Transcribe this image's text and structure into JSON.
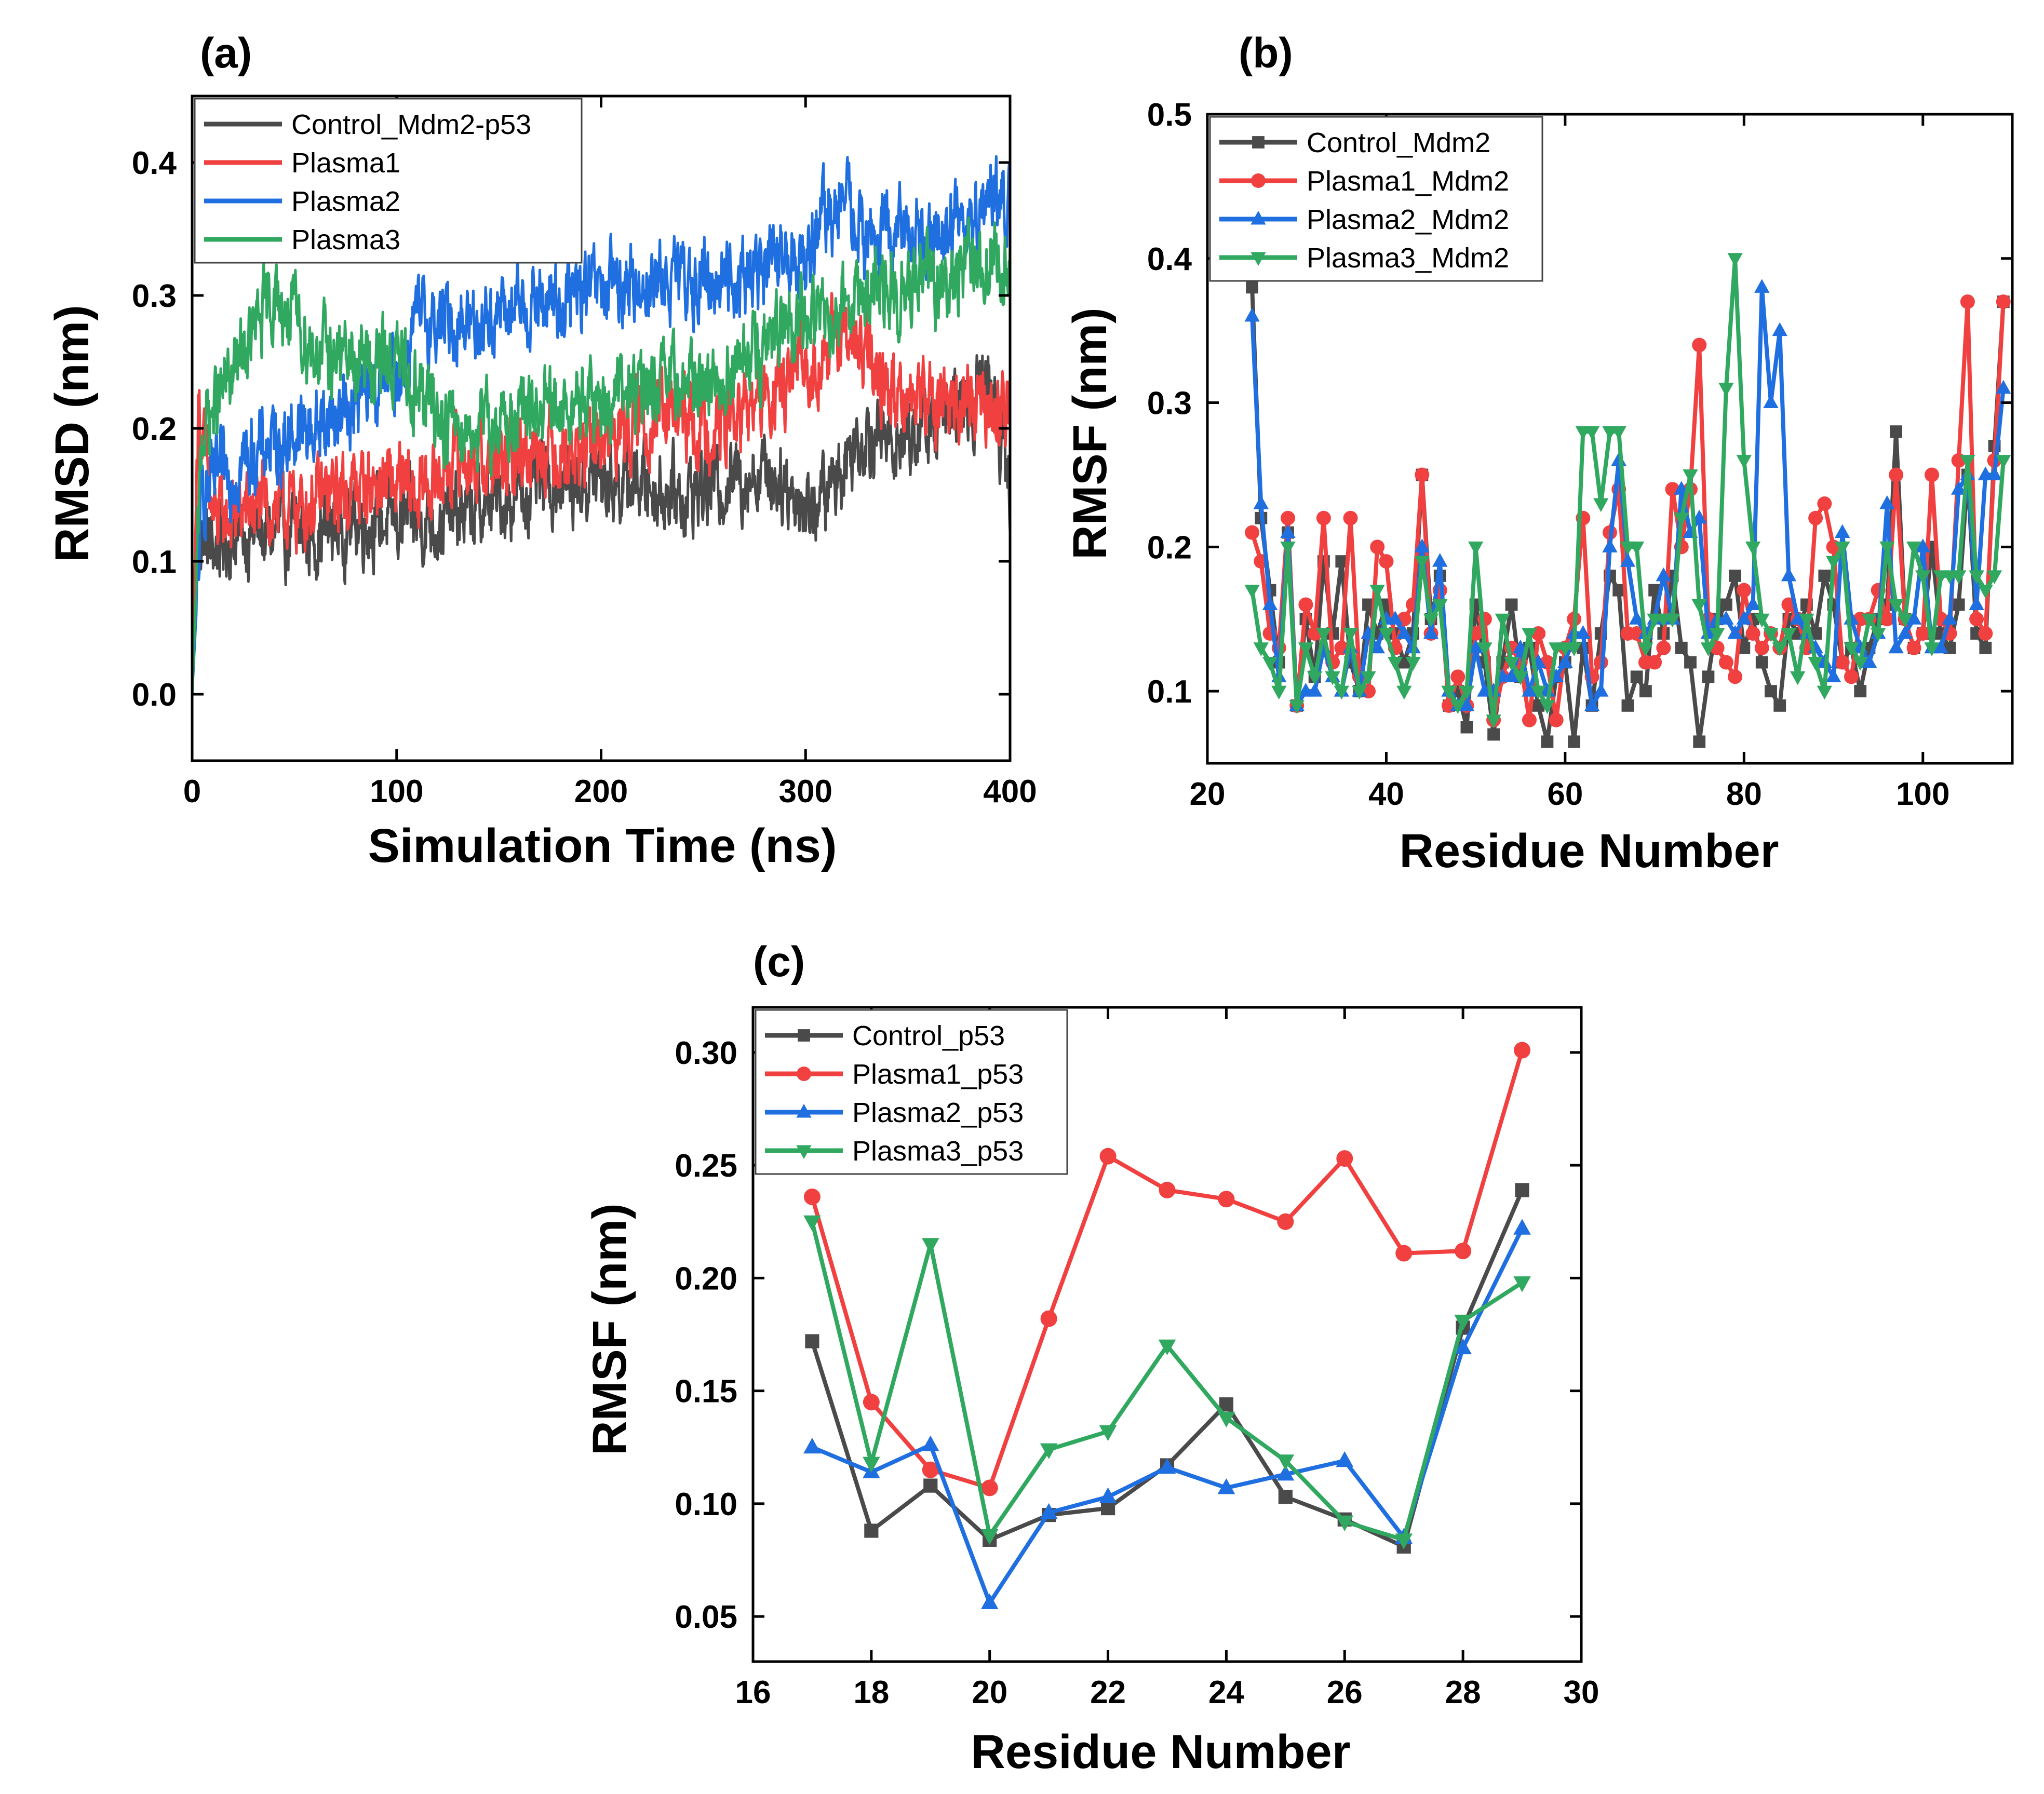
{
  "colors": {
    "control": "#4a4a4a",
    "plasma1": "#f04040",
    "plasma2": "#1f6fe0",
    "plasma3": "#30a860"
  },
  "chart_data": [
    {
      "panel": "(a)",
      "type": "line",
      "xlabel": "Simulation Time (ns)",
      "ylabel": "RMSD (nm)",
      "xlim": [
        0,
        400
      ],
      "ylim": [
        -0.05,
        0.45
      ],
      "xticks": [
        "0",
        "100",
        "200",
        "300",
        "400"
      ],
      "yticks": [
        "0.0",
        "0.1",
        "0.2",
        "0.3",
        "0.4"
      ],
      "xtick_values": [
        0,
        100,
        200,
        300,
        400
      ],
      "ytick_values": [
        0.0,
        0.1,
        0.2,
        0.3,
        0.4
      ],
      "legend_position": "top-left",
      "series": [
        {
          "name": "Control_Mdm2-p53",
          "color_key": "control",
          "x": [
            0,
            3,
            10,
            20,
            40,
            60,
            80,
            100,
            120,
            140,
            160,
            180,
            200,
            220,
            240,
            260,
            280,
            290,
            300,
            310,
            320,
            330,
            340,
            360,
            380,
            390,
            400
          ],
          "y": [
            0.0,
            0.12,
            0.11,
            0.12,
            0.12,
            0.12,
            0.13,
            0.13,
            0.13,
            0.14,
            0.15,
            0.16,
            0.16,
            0.16,
            0.15,
            0.16,
            0.17,
            0.16,
            0.14,
            0.15,
            0.18,
            0.2,
            0.19,
            0.2,
            0.22,
            0.24,
            0.15
          ]
        },
        {
          "name": "Plasma1",
          "color_key": "plasma1",
          "x": [
            0,
            3,
            10,
            30,
            50,
            70,
            90,
            110,
            130,
            150,
            170,
            190,
            210,
            230,
            250,
            270,
            290,
            310,
            320,
            330,
            340,
            360,
            380,
            400
          ],
          "y": [
            0.0,
            0.22,
            0.13,
            0.14,
            0.14,
            0.15,
            0.16,
            0.15,
            0.18,
            0.17,
            0.19,
            0.18,
            0.2,
            0.21,
            0.2,
            0.21,
            0.23,
            0.26,
            0.27,
            0.25,
            0.23,
            0.22,
            0.22,
            0.21
          ]
        },
        {
          "name": "Plasma2",
          "color_key": "plasma2",
          "x": [
            0,
            5,
            20,
            40,
            60,
            80,
            100,
            110,
            130,
            160,
            190,
            220,
            250,
            280,
            300,
            310,
            320,
            330,
            350,
            370,
            380,
            390,
            400
          ],
          "y": [
            0.0,
            0.15,
            0.17,
            0.19,
            0.2,
            0.22,
            0.24,
            0.28,
            0.28,
            0.29,
            0.3,
            0.31,
            0.31,
            0.32,
            0.33,
            0.36,
            0.37,
            0.34,
            0.35,
            0.35,
            0.36,
            0.37,
            0.37
          ]
        },
        {
          "name": "Plasma3",
          "color_key": "plasma3",
          "x": [
            0,
            5,
            20,
            40,
            60,
            80,
            100,
            120,
            140,
            170,
            200,
            230,
            260,
            280,
            300,
            320,
            340,
            360,
            380,
            400
          ],
          "y": [
            0.0,
            0.2,
            0.24,
            0.3,
            0.26,
            0.25,
            0.25,
            0.21,
            0.2,
            0.21,
            0.22,
            0.23,
            0.24,
            0.26,
            0.28,
            0.3,
            0.3,
            0.31,
            0.32,
            0.33
          ]
        }
      ]
    },
    {
      "panel": "(b)",
      "type": "line",
      "xlabel": "Residue Number",
      "ylabel": "RMSF (nm)",
      "xlim": [
        20,
        110
      ],
      "ylim": [
        0.05,
        0.5
      ],
      "xticks": [
        "20",
        "40",
        "60",
        "80",
        "100"
      ],
      "yticks": [
        "0.1",
        "0.2",
        "0.3",
        "0.4",
        "0.5"
      ],
      "xtick_values": [
        20,
        40,
        60,
        80,
        100
      ],
      "ytick_values": [
        0.1,
        0.2,
        0.3,
        0.4,
        0.5
      ],
      "legend_position": "top-left",
      "x_start": 25,
      "series": [
        {
          "name": "Control_Mdm2",
          "color_key": "control",
          "marker": "square",
          "values": [
            0.38,
            0.22,
            0.17,
            0.12,
            0.21,
            0.09,
            0.15,
            0.11,
            0.19,
            0.14,
            0.19,
            0.12,
            0.1,
            0.16,
            0.14,
            0.16,
            0.14,
            0.12,
            0.14,
            0.25,
            0.15,
            0.18,
            0.09,
            0.1,
            0.075,
            0.16,
            0.12,
            0.07,
            0.12,
            0.16,
            0.11,
            0.13,
            0.09,
            0.065,
            0.11,
            0.12,
            0.065,
            0.13,
            0.09,
            0.14,
            0.18,
            0.17,
            0.09,
            0.11,
            0.1,
            0.17,
            0.14,
            0.18,
            0.13,
            0.12,
            0.065,
            0.11,
            0.15,
            0.16,
            0.18,
            0.13,
            0.15,
            0.12,
            0.1,
            0.09,
            0.15,
            0.14,
            0.16,
            0.14,
            0.18,
            0.16,
            0.12,
            0.13,
            0.1,
            0.13,
            0.15,
            0.16,
            0.28,
            0.15,
            0.13,
            0.14,
            0.2,
            0.14,
            0.13,
            0.16,
            0.25,
            0.14,
            0.13,
            0.27,
            0.37
          ]
        },
        {
          "name": "Plasma1_Mdm2",
          "color_key": "plasma1",
          "marker": "circle",
          "values": [
            0.21,
            0.19,
            0.14,
            0.13,
            0.22,
            0.09,
            0.16,
            0.14,
            0.22,
            0.12,
            0.13,
            0.22,
            0.11,
            0.1,
            0.2,
            0.19,
            0.13,
            0.15,
            0.16,
            0.25,
            0.14,
            0.17,
            0.09,
            0.11,
            0.09,
            0.14,
            0.15,
            0.08,
            0.11,
            0.13,
            0.12,
            0.08,
            0.14,
            0.12,
            0.08,
            0.13,
            0.15,
            0.22,
            0.11,
            0.12,
            0.21,
            0.24,
            0.14,
            0.14,
            0.12,
            0.12,
            0.13,
            0.24,
            0.2,
            0.24,
            0.34,
            0.15,
            0.13,
            0.12,
            0.11,
            0.17,
            0.14,
            0.13,
            0.14,
            0.13,
            0.16,
            0.15,
            0.13,
            0.22,
            0.23,
            0.2,
            0.12,
            0.11,
            0.15,
            0.15,
            0.17,
            0.15,
            0.25,
            0.15,
            0.13,
            0.14,
            0.25,
            0.15,
            0.14,
            0.26,
            0.37,
            0.15,
            0.14,
            0.26,
            0.37
          ]
        },
        {
          "name": "Plasma2_Mdm2",
          "color_key": "plasma2",
          "marker": "triangle-up",
          "values": [
            0.36,
            0.23,
            0.16,
            0.11,
            0.21,
            0.09,
            0.1,
            0.1,
            0.13,
            0.11,
            0.1,
            0.13,
            0.1,
            0.14,
            0.13,
            0.15,
            0.15,
            0.14,
            0.13,
            0.2,
            0.14,
            0.19,
            0.1,
            0.09,
            0.09,
            0.13,
            0.1,
            0.1,
            0.11,
            0.11,
            0.13,
            0.1,
            0.12,
            0.1,
            0.11,
            0.12,
            0.14,
            0.14,
            0.09,
            0.1,
            0.2,
            0.26,
            0.19,
            0.15,
            0.14,
            0.15,
            0.18,
            0.15,
            0.24,
            0.21,
            0.22,
            0.14,
            0.15,
            0.15,
            0.14,
            0.15,
            0.16,
            0.38,
            0.3,
            0.35,
            0.18,
            0.15,
            0.14,
            0.13,
            0.12,
            0.11,
            0.21,
            0.15,
            0.13,
            0.12,
            0.14,
            0.23,
            0.13,
            0.14,
            0.15,
            0.2,
            0.13,
            0.13,
            0.15,
            0.24,
            0.25,
            0.16,
            0.25,
            0.25,
            0.31
          ]
        },
        {
          "name": "Plasma3_Mdm2",
          "color_key": "plasma3",
          "marker": "triangle-down",
          "values": [
            0.17,
            0.13,
            0.12,
            0.1,
            0.2,
            0.09,
            0.13,
            0.11,
            0.14,
            0.11,
            0.1,
            0.14,
            0.1,
            0.11,
            0.17,
            0.14,
            0.12,
            0.1,
            0.12,
            0.19,
            0.15,
            0.16,
            0.1,
            0.09,
            0.1,
            0.2,
            0.13,
            0.08,
            0.15,
            0.12,
            0.11,
            0.14,
            0.1,
            0.09,
            0.13,
            0.13,
            0.13,
            0.28,
            0.28,
            0.23,
            0.28,
            0.28,
            0.2,
            0.2,
            0.13,
            0.15,
            0.15,
            0.15,
            0.22,
            0.25,
            0.16,
            0.13,
            0.14,
            0.31,
            0.4,
            0.26,
            0.2,
            0.15,
            0.14,
            0.13,
            0.14,
            0.11,
            0.15,
            0.12,
            0.1,
            0.19,
            0.2,
            0.13,
            0.12,
            0.15,
            0.14,
            0.2,
            0.16,
            0.15,
            0.2,
            0.18,
            0.13,
            0.18,
            0.18,
            0.18,
            0.26,
            0.18,
            0.17,
            0.18,
            0.26
          ]
        }
      ]
    },
    {
      "panel": "(c)",
      "type": "line",
      "xlabel": "Residue Number",
      "ylabel": "RMSF (nm)",
      "xlim": [
        16,
        30
      ],
      "ylim": [
        0.03,
        0.32
      ],
      "xticks": [
        "16",
        "18",
        "20",
        "22",
        "24",
        "26",
        "28",
        "30"
      ],
      "yticks": [
        "0.05",
        "0.10",
        "0.15",
        "0.20",
        "0.25",
        "0.30"
      ],
      "xtick_values": [
        16,
        18,
        20,
        22,
        24,
        26,
        28,
        30
      ],
      "ytick_values": [
        0.05,
        0.1,
        0.15,
        0.2,
        0.25,
        0.3
      ],
      "legend_position": "top-left",
      "x": [
        17,
        18,
        19,
        20,
        21,
        22,
        23,
        24,
        25,
        26,
        27,
        28,
        29
      ],
      "series": [
        {
          "name": "Control_p53",
          "color_key": "control",
          "marker": "square",
          "values": [
            0.172,
            0.088,
            0.108,
            0.084,
            0.095,
            0.098,
            0.117,
            0.144,
            0.103,
            0.093,
            0.081,
            0.178,
            0.239
          ]
        },
        {
          "name": "Plasma1_p53",
          "color_key": "plasma1",
          "marker": "circle",
          "values": [
            0.236,
            0.145,
            0.115,
            0.107,
            0.182,
            0.254,
            0.239,
            0.235,
            0.225,
            0.253,
            0.211,
            0.212,
            0.301
          ]
        },
        {
          "name": "Plasma2_p53",
          "color_key": "plasma2",
          "marker": "triangle-up",
          "values": [
            0.125,
            0.114,
            0.126,
            0.056,
            0.096,
            0.103,
            0.116,
            0.107,
            0.113,
            0.119,
            0.085,
            0.169,
            0.222
          ]
        },
        {
          "name": "Plasma3_p53",
          "color_key": "plasma3",
          "marker": "triangle-down",
          "values": [
            0.225,
            0.118,
            0.215,
            0.086,
            0.124,
            0.132,
            0.17,
            0.138,
            0.119,
            0.092,
            0.084,
            0.181,
            0.198
          ]
        }
      ]
    }
  ]
}
